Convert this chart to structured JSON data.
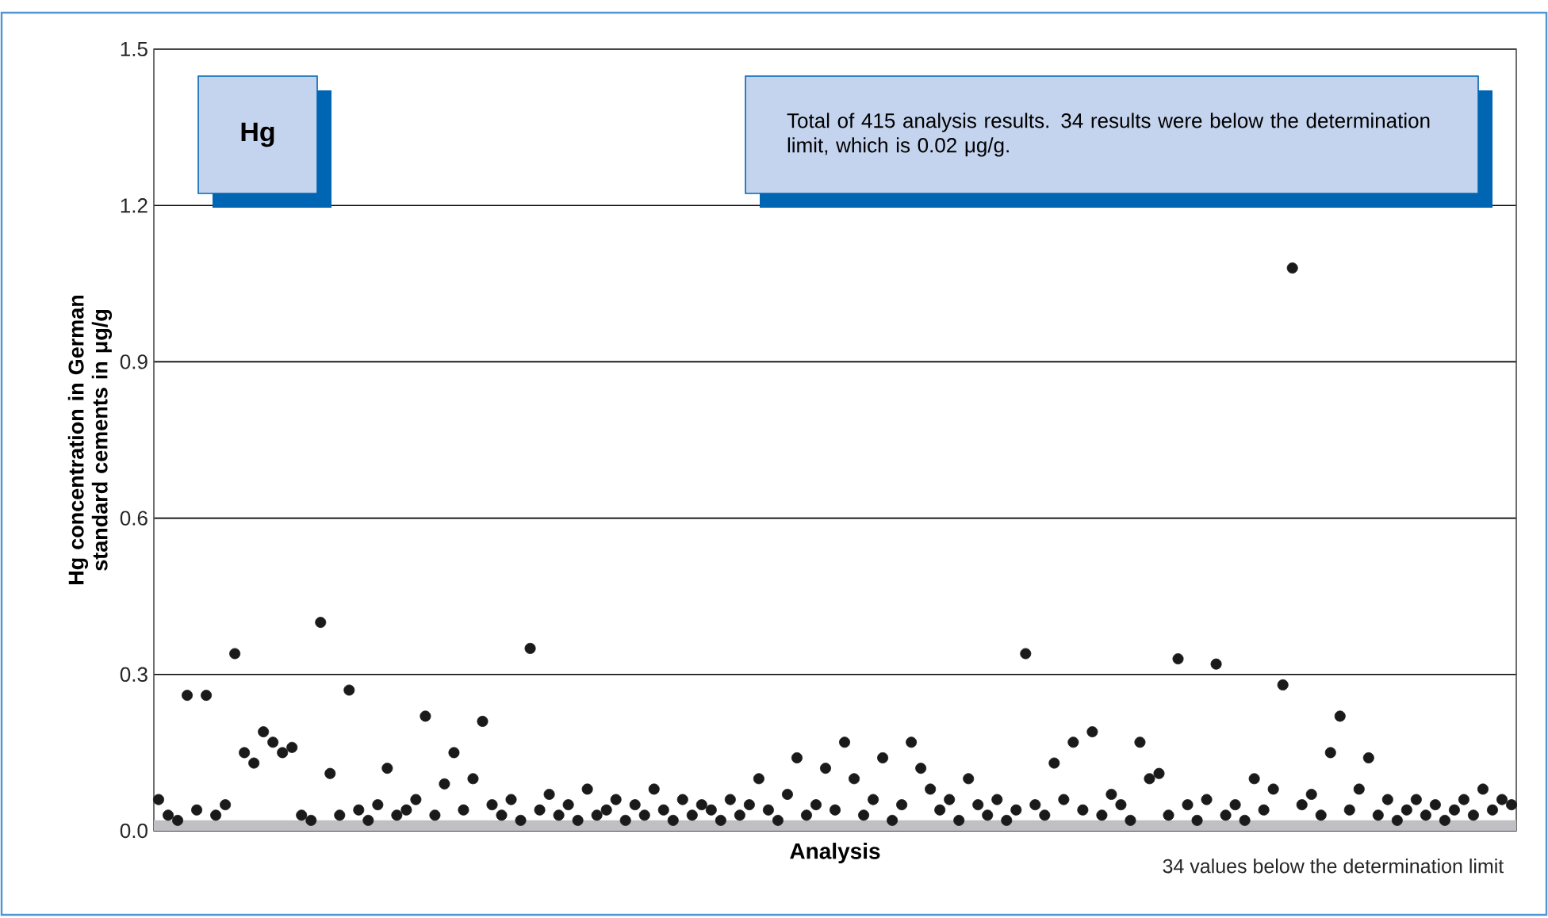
{
  "chart_data": {
    "type": "scatter",
    "ylabel": "Hg concentration in German standard cements in μg/g",
    "xlabel": "Analysis",
    "annotations": [
      "Hg",
      "Total of 415 analysis results. 34 results were below the determination limit, which is 0.02 μg/g."
    ],
    "categories": [
      null,
      null,
      null,
      null,
      null,
      null,
      null,
      null,
      null,
      null,
      null,
      null,
      null,
      null,
      null,
      null,
      null,
      null,
      null,
      null,
      null,
      null,
      null,
      null,
      null,
      null,
      null,
      null,
      null,
      null,
      null,
      null,
      null,
      null,
      null,
      null,
      null,
      null,
      null,
      null,
      null,
      null,
      null,
      null,
      null,
      null,
      null,
      null,
      null,
      null,
      null,
      null,
      null,
      null,
      null,
      null,
      null,
      null,
      null,
      null,
      null,
      null,
      null,
      null,
      null,
      null,
      null,
      null,
      null,
      null,
      null,
      null,
      null,
      null,
      null,
      null,
      null,
      null,
      null,
      null,
      null,
      null,
      null,
      null,
      null,
      null,
      null,
      null,
      null,
      null,
      null,
      null,
      null,
      null,
      null,
      null,
      null,
      null,
      null,
      null,
      null,
      null,
      null,
      null,
      null,
      null,
      null,
      null,
      null,
      null,
      null,
      null,
      null,
      null,
      null,
      null,
      null,
      null,
      null,
      null,
      null,
      null,
      null,
      null,
      null,
      null,
      null,
      null,
      null,
      null,
      null,
      null,
      null,
      null,
      null,
      null,
      null,
      null,
      null,
      null,
      null,
      null,
      null
    ],
    "series": [
      {
        "color": "#1a1a1a",
        "values": [
          0.06,
          0.03,
          0.02,
          0.26,
          0.04,
          0.26,
          0.03,
          0.05,
          0.34,
          0.15,
          0.13,
          0.19,
          0.17,
          0.15,
          0.16,
          0.03,
          0.02,
          0.4,
          0.11,
          0.03,
          0.27,
          0.04,
          0.02,
          0.05,
          0.12,
          0.03,
          0.04,
          0.06,
          0.22,
          0.03,
          0.09,
          0.15,
          0.04,
          0.1,
          0.21,
          0.05,
          0.03,
          0.06,
          0.02,
          0.35,
          0.04,
          0.07,
          0.03,
          0.05,
          0.02,
          0.08,
          0.03,
          0.04,
          0.06,
          0.02,
          0.05,
          0.03,
          0.08,
          0.04,
          0.02,
          0.06,
          0.03,
          0.05,
          0.04,
          0.02,
          0.06,
          0.03,
          0.05,
          0.1,
          0.04,
          0.02,
          0.07,
          0.14,
          0.03,
          0.05,
          0.12,
          0.04,
          0.17,
          0.1,
          0.03,
          0.06,
          0.14,
          0.02,
          0.05,
          0.17,
          0.12,
          0.08,
          0.04,
          0.06,
          0.02,
          0.1,
          0.05,
          0.03,
          0.06,
          0.02,
          0.04,
          0.34,
          0.05,
          0.03,
          0.13,
          0.06,
          0.17,
          0.04,
          0.19,
          0.03,
          0.07,
          0.05,
          0.02,
          0.17,
          0.1,
          0.11,
          0.03,
          0.33,
          0.05,
          0.02,
          0.06,
          0.32,
          0.03,
          0.05,
          0.02,
          0.1,
          0.04,
          0.08,
          0.28,
          1.08,
          0.05,
          0.07,
          0.03,
          0.15,
          0.22,
          0.04,
          0.08,
          0.14,
          0.03,
          0.06,
          0.02,
          0.04,
          0.06,
          0.03,
          0.05,
          0.02,
          0.04,
          0.06,
          0.03,
          0.08,
          0.04,
          0.06,
          0.05
        ]
      }
    ],
    "marker": "circle",
    "ylim": [
      0,
      1.5
    ],
    "yticks": [
      {
        "value": 0,
        "label": "0.0"
      },
      0.3,
      0.6,
      0.9,
      1.2,
      1.5
    ],
    "tick_labels": "y",
    "grid": "y",
    "bands": [
      {
        "axis": "y",
        "from": 0,
        "to": 0.02,
        "label": "34 values below the determination limit",
        "color": "#c0c0c4"
      }
    ]
  }
}
